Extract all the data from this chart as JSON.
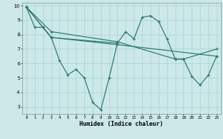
{
  "xlabel": "Humidex (Indice chaleur)",
  "xlim": [
    -0.5,
    23.5
  ],
  "ylim": [
    2.5,
    10.2
  ],
  "xticks": [
    0,
    1,
    2,
    3,
    4,
    5,
    6,
    7,
    8,
    9,
    10,
    11,
    12,
    13,
    14,
    15,
    16,
    17,
    18,
    19,
    20,
    21,
    22,
    23
  ],
  "yticks": [
    3,
    4,
    5,
    6,
    7,
    8,
    9,
    10
  ],
  "line_color": "#2a7a6e",
  "bg_color": "#cce8e8",
  "grid_color": "#b0d8d8",
  "line1_x": [
    0,
    1,
    2,
    3,
    4,
    5,
    6,
    7,
    8,
    9,
    10,
    11
  ],
  "line1_y": [
    9.9,
    8.5,
    8.5,
    7.8,
    6.2,
    5.2,
    5.6,
    5.0,
    3.3,
    2.8,
    5.0,
    7.4
  ],
  "line2_x": [
    0,
    2,
    3,
    11,
    12,
    13,
    14,
    15,
    16,
    17,
    18,
    19,
    20,
    21,
    22,
    23
  ],
  "line2_y": [
    9.9,
    8.5,
    7.8,
    7.4,
    8.2,
    7.7,
    9.2,
    9.3,
    8.9,
    7.7,
    6.3,
    6.3,
    5.1,
    4.5,
    5.2,
    6.5
  ],
  "line3_x": [
    0,
    3,
    11,
    23
  ],
  "line3_y": [
    9.9,
    7.8,
    7.3,
    6.5
  ],
  "line4_x": [
    0,
    3,
    11,
    18,
    19,
    23
  ],
  "line4_y": [
    9.9,
    8.2,
    7.5,
    6.3,
    6.3,
    7.0
  ]
}
